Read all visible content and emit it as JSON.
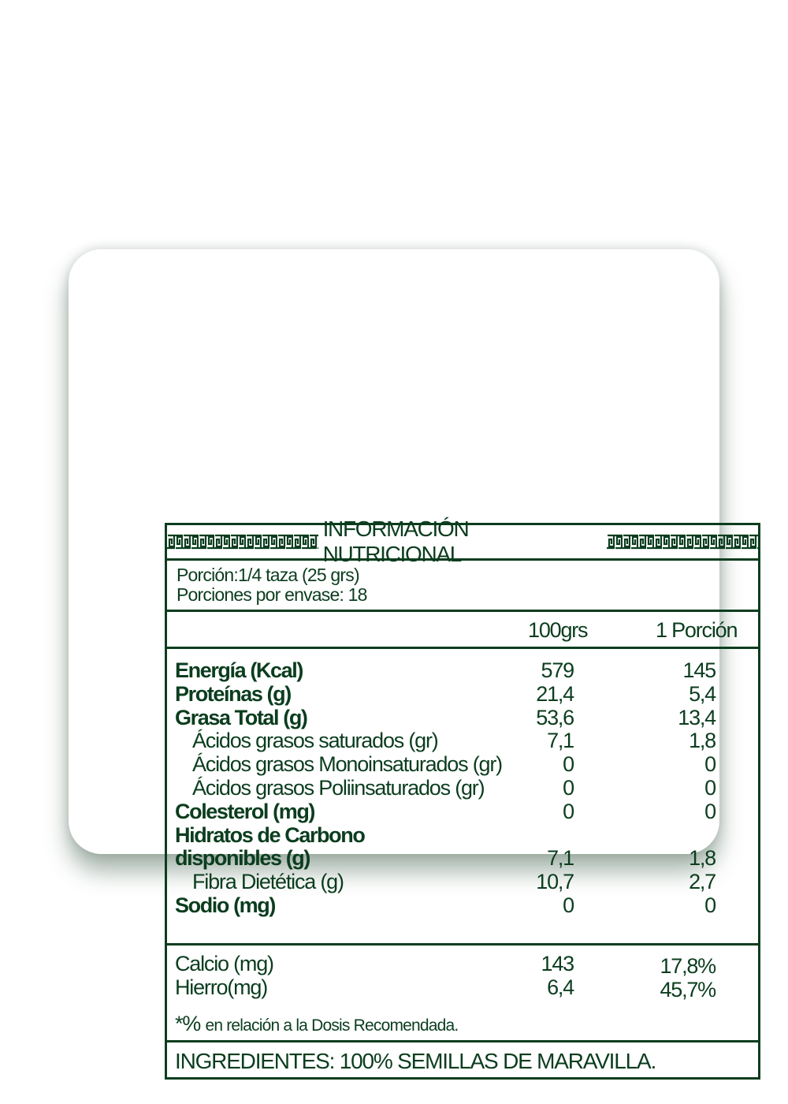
{
  "header": {
    "title": "INFORMACIÓN NUTRICIONAL",
    "decoration": "greek-key-pattern"
  },
  "serving": {
    "portion": "Porción:1/4 taza (25 grs)",
    "per_package": "Porciones por envase: 18"
  },
  "columns": {
    "col1": "100grs",
    "col2": "1 Porción"
  },
  "nutrients": [
    {
      "label": "Energía (Kcal)",
      "bold": true,
      "indent": false,
      "v100": "579",
      "vport": "145"
    },
    {
      "label": "Proteínas (g)",
      "bold": true,
      "indent": false,
      "v100": "21,4",
      "vport": "5,4"
    },
    {
      "label": "Grasa Total (g)",
      "bold": true,
      "indent": false,
      "v100": "53,6",
      "vport": "13,4"
    },
    {
      "label": "Ácidos grasos saturados (gr)",
      "bold": false,
      "indent": true,
      "v100": "7,1",
      "vport": "1,8"
    },
    {
      "label": "Ácidos grasos Monoinsaturados (gr)",
      "bold": false,
      "indent": true,
      "v100": "0",
      "vport": "0"
    },
    {
      "label": "Ácidos grasos Poliinsaturados (gr)",
      "bold": false,
      "indent": true,
      "v100": "0",
      "vport": "0"
    },
    {
      "label": "Colesterol (mg)",
      "bold": true,
      "indent": false,
      "v100": "0",
      "vport": "0"
    },
    {
      "label": "Hidratos de Carbono",
      "bold": true,
      "indent": false,
      "v100": "",
      "vport": ""
    },
    {
      "label": "disponibles (g)",
      "bold": true,
      "indent": false,
      "v100": "7,1",
      "vport": "1,8"
    },
    {
      "label": "Fibra Dietética (g)",
      "bold": false,
      "indent": true,
      "v100": "10,7",
      "vport": "2,7"
    },
    {
      "label": "Sodio (mg)",
      "bold": true,
      "indent": false,
      "v100": "0",
      "vport": "0"
    }
  ],
  "minerals": [
    {
      "label": "Calcio (mg)",
      "v100": "143",
      "vport": "17,8%"
    },
    {
      "label": "Hierro(mg)",
      "v100": "6,4",
      "vport": "45,7%"
    }
  ],
  "footnote": {
    "star": "*%",
    "text": "en relación a la Dosis Recomendada."
  },
  "ingredients": "INGREDIENTES: 100% SEMILLAS DE MARAVILLA.",
  "colors": {
    "ink": "#0b3d1e",
    "background": "#ffffff"
  }
}
